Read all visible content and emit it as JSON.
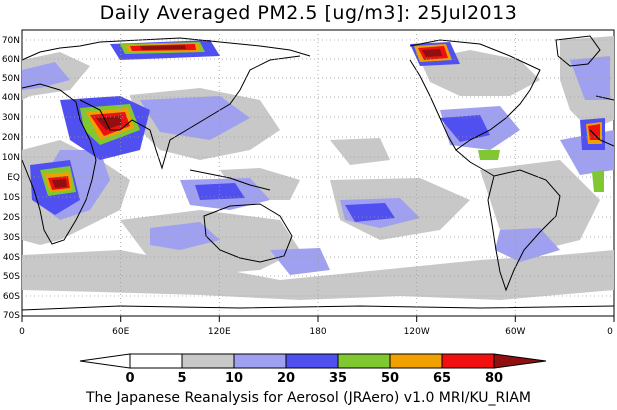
{
  "title": "Daily Averaged PM2.5 [ug/m3]: 25Jul2013",
  "footer": "The Japanese Reanalysis for Aerosol (JRAero) v1.0 MRI/KU_RIAM",
  "map": {
    "lat_labels": [
      "70N",
      "60N",
      "50N",
      "40N",
      "30N",
      "20N",
      "10N",
      "EQ",
      "10S",
      "20S",
      "30S",
      "40S",
      "50S",
      "60S",
      "70S"
    ],
    "lon_labels": [
      "0",
      "60E",
      "120E",
      "180",
      "120W",
      "60W",
      "0"
    ]
  },
  "colorbar": {
    "levels": [
      "0",
      "5",
      "10",
      "20",
      "35",
      "50",
      "65",
      "80"
    ],
    "colors": [
      "#ffffff",
      "#c8c8c8",
      "#a0a0f0",
      "#5050f0",
      "#80c830",
      "#f0a000",
      "#f01010",
      "#901010"
    ]
  }
}
